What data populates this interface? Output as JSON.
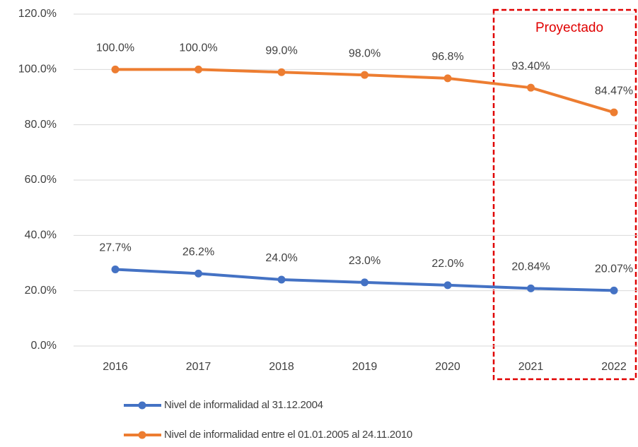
{
  "chart_data": {
    "type": "line",
    "categories": [
      "2016",
      "2017",
      "2018",
      "2019",
      "2020",
      "2021",
      "2022"
    ],
    "series": [
      {
        "name": "Nivel de informalidad al 31.12.2004",
        "color": "#4472c4",
        "values": [
          27.7,
          26.2,
          24.0,
          23.0,
          22.0,
          20.84,
          20.07
        ],
        "value_labels": [
          "27.7%",
          "26.2%",
          "24.0%",
          "23.0%",
          "22.0%",
          "20.84%",
          "20.07%"
        ]
      },
      {
        "name": "Nivel de informalidad entre el 01.01.2005 al 24.11.2010",
        "color": "#ed7d31",
        "values": [
          100,
          100,
          99.0,
          98.0,
          96.8,
          93.4,
          84.47
        ],
        "value_labels": [
          "100.0%",
          "100.0%",
          "99.0%",
          "98.0%",
          "96.8%",
          "93.40%",
          "84.47%"
        ]
      }
    ],
    "ylim": [
      0,
      120
    ],
    "yticks": [
      {
        "value": 0,
        "label": "0.0%"
      },
      {
        "value": 20,
        "label": "20.0%"
      },
      {
        "value": 40,
        "label": "40.0%"
      },
      {
        "value": 60,
        "label": "60.0%"
      },
      {
        "value": 80,
        "label": "80.0%"
      },
      {
        "value": 100,
        "label": "100.0%"
      },
      {
        "value": 120,
        "label": "120.0%"
      }
    ],
    "grid": true,
    "annotation": "Proyectado"
  }
}
